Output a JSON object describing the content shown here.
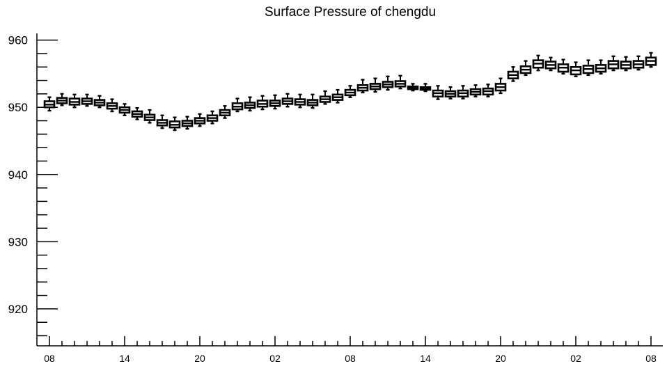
{
  "chart_data": {
    "type": "box",
    "title": "Surface Pressure of chengdu",
    "xlabel": "",
    "ylabel": "",
    "ylim": [
      914.5,
      961
    ],
    "y_major_ticks": [
      920,
      930,
      940,
      950,
      960
    ],
    "y_minor_step": 2,
    "x_tick_labels": [
      "08",
      "14",
      "20",
      "02",
      "08",
      "14",
      "20",
      "02",
      "08"
    ],
    "x_tick_indices": [
      0,
      6,
      12,
      18,
      24,
      30,
      36,
      42,
      48
    ],
    "x_minor_step": 1,
    "grid": false,
    "median": [
      950.4,
      951.0,
      950.8,
      950.9,
      950.7,
      950.2,
      949.6,
      949.0,
      948.5,
      947.7,
      947.4,
      947.6,
      948.0,
      948.4,
      949.2,
      950.1,
      950.3,
      950.5,
      950.6,
      950.9,
      950.8,
      950.7,
      951.2,
      951.5,
      952.2,
      952.9,
      953.1,
      953.4,
      953.5,
      952.9,
      952.8,
      952.1,
      952.0,
      952.1,
      952.3,
      952.4,
      953.0,
      954.8,
      955.6,
      956.5,
      956.3,
      955.9,
      955.5,
      955.7,
      955.8,
      956.4,
      956.3,
      956.4,
      956.9
    ],
    "q1": [
      950.0,
      950.6,
      950.4,
      950.5,
      950.3,
      949.8,
      949.2,
      948.6,
      948.1,
      947.3,
      947.0,
      947.2,
      947.6,
      948.0,
      948.8,
      949.7,
      949.9,
      950.1,
      950.2,
      950.5,
      950.4,
      950.3,
      950.8,
      951.1,
      951.8,
      952.5,
      952.7,
      953.0,
      953.1,
      952.7,
      952.6,
      951.6,
      951.6,
      951.6,
      951.9,
      951.9,
      952.5,
      954.3,
      955.1,
      955.9,
      955.8,
      955.3,
      954.9,
      955.1,
      955.3,
      955.8,
      955.8,
      955.9,
      956.3
    ],
    "q3": [
      950.9,
      951.4,
      951.3,
      951.3,
      951.1,
      950.6,
      950.0,
      949.4,
      948.9,
      948.1,
      947.9,
      948.0,
      948.4,
      948.8,
      949.6,
      950.6,
      950.7,
      951.0,
      951.0,
      951.3,
      951.2,
      951.1,
      951.6,
      951.9,
      952.6,
      953.3,
      953.5,
      953.8,
      953.9,
      953.1,
      953.0,
      952.5,
      952.4,
      952.5,
      952.7,
      952.8,
      953.5,
      955.3,
      956.1,
      957.0,
      956.8,
      956.4,
      956.0,
      956.2,
      956.3,
      956.9,
      956.8,
      956.9,
      957.4
    ],
    "min": [
      949.5,
      950.3,
      950.0,
      950.2,
      950.0,
      949.4,
      948.8,
      948.2,
      947.7,
      946.9,
      946.6,
      946.8,
      947.2,
      947.6,
      948.4,
      949.4,
      949.5,
      949.7,
      949.8,
      950.1,
      950.0,
      949.9,
      950.5,
      950.7,
      951.5,
      952.2,
      952.3,
      952.6,
      952.8,
      952.5,
      952.4,
      951.2,
      951.3,
      951.3,
      951.6,
      951.6,
      952.1,
      953.9,
      954.8,
      955.5,
      955.5,
      955.0,
      954.6,
      954.8,
      955.0,
      955.5,
      955.5,
      955.6,
      956.0
    ],
    "max": [
      951.5,
      952.0,
      951.9,
      951.9,
      951.7,
      951.2,
      950.5,
      949.9,
      949.6,
      948.8,
      948.5,
      948.6,
      949.0,
      949.4,
      950.2,
      951.3,
      951.5,
      951.7,
      951.8,
      952.0,
      951.9,
      951.9,
      952.4,
      952.6,
      953.2,
      954.1,
      954.3,
      954.6,
      954.7,
      953.5,
      953.5,
      953.2,
      953.0,
      953.2,
      953.3,
      953.4,
      954.3,
      956.0,
      956.9,
      957.7,
      957.4,
      957.1,
      956.7,
      957.0,
      957.0,
      957.6,
      957.5,
      957.6,
      958.1
    ]
  }
}
